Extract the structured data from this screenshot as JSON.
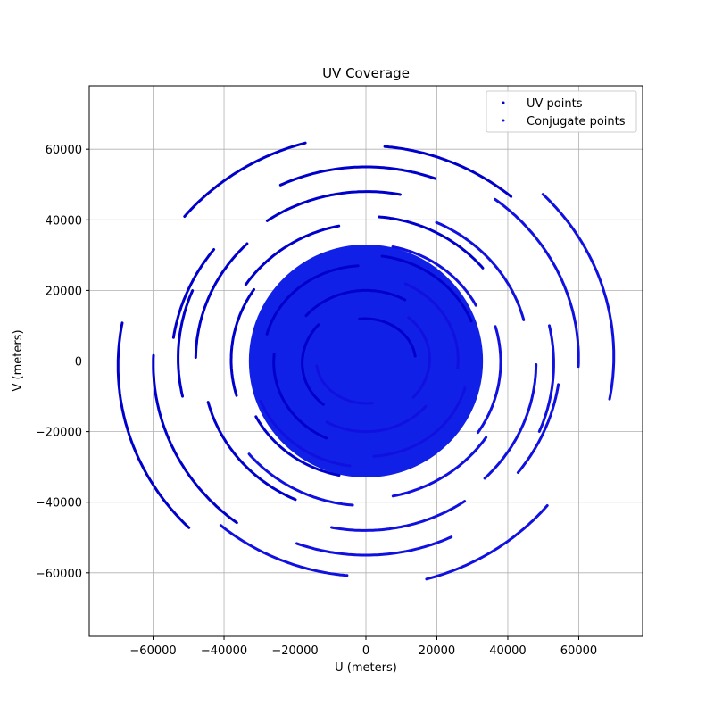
{
  "chart_data": {
    "type": "scatter",
    "title": "UV Coverage",
    "xlabel": "U (meters)",
    "ylabel": "V (meters)",
    "xlim": [
      -78000,
      78000
    ],
    "ylim": [
      -78000,
      78000
    ],
    "xticks": [
      -60000,
      -40000,
      -20000,
      0,
      20000,
      40000,
      60000
    ],
    "yticks": [
      -60000,
      -40000,
      -20000,
      0,
      20000,
      40000,
      60000
    ],
    "xtick_labels": [
      "−60000",
      "−40000",
      "−20000",
      "0",
      "20000",
      "40000",
      "60000"
    ],
    "ytick_labels": [
      "−60000",
      "−40000",
      "−20000",
      "0",
      "20000",
      "40000",
      "60000"
    ],
    "grid": true,
    "legend_position": "top-right",
    "series": [
      {
        "name": "UV points",
        "color": "#0000cc",
        "tracks": [
          {
            "ra": 70000,
            "rb": 66000,
            "rot": 10,
            "t0": 160,
            "t1": 215
          },
          {
            "ra": 67000,
            "rb": 64000,
            "rot": 5,
            "t0": 100,
            "t1": 135
          },
          {
            "ra": 64000,
            "rb": 61000,
            "rot": -5,
            "t0": 55,
            "t1": 90
          },
          {
            "ra": 60000,
            "rb": 57000,
            "rot": 8,
            "t0": 170,
            "t1": 225
          },
          {
            "ra": 57000,
            "rb": 55000,
            "rot": 0,
            "t0": 70,
            "t1": 115
          },
          {
            "ra": 55000,
            "rb": 52000,
            "rot": 12,
            "t0": 130,
            "t1": 160
          },
          {
            "ra": 53000,
            "rb": 50000,
            "rot": -8,
            "t0": 165,
            "t1": 200
          },
          {
            "ra": 50000,
            "rb": 48000,
            "rot": 4,
            "t0": 75,
            "t1": 120
          },
          {
            "ra": 48000,
            "rb": 46000,
            "rot": -6,
            "t0": 140,
            "t1": 185
          },
          {
            "ra": 46000,
            "rb": 43000,
            "rot": 10,
            "t0": 185,
            "t1": 235
          },
          {
            "ra": 43000,
            "rb": 41000,
            "rot": 0,
            "t0": 40,
            "t1": 85
          },
          {
            "ra": 41000,
            "rb": 39000,
            "rot": 6,
            "t0": 95,
            "t1": 140
          },
          {
            "ra": 38000,
            "rb": 36000,
            "rot": -4,
            "t0": 150,
            "t1": 200
          },
          {
            "ra": 35000,
            "rb": 33000,
            "rot": 8,
            "t0": 200,
            "t1": 250
          },
          {
            "ra": 32000,
            "rb": 30000,
            "rot": 2,
            "t0": 20,
            "t1": 80
          },
          {
            "ra": 29000,
            "rb": 27000,
            "rot": -6,
            "t0": 100,
            "t1": 170
          },
          {
            "ra": 26000,
            "rb": 24000,
            "rot": 5,
            "t0": 170,
            "t1": 240
          },
          {
            "ra": 22000,
            "rb": 20000,
            "rot": 0,
            "t0": 60,
            "t1": 140
          },
          {
            "ra": 18000,
            "rb": 16000,
            "rot": 9,
            "t0": 130,
            "t1": 220
          },
          {
            "ra": 14000,
            "rb": 12000,
            "rot": -3,
            "t0": 10,
            "t1": 100
          }
        ]
      },
      {
        "name": "Conjugate points",
        "color": "#1010e0",
        "tracks": [
          {
            "ra": 70000,
            "rb": 66000,
            "rot": 10,
            "t0": 340,
            "t1": 395
          },
          {
            "ra": 67000,
            "rb": 64000,
            "rot": 5,
            "t0": 280,
            "t1": 315
          },
          {
            "ra": 64000,
            "rb": 61000,
            "rot": -5,
            "t0": 235,
            "t1": 270
          },
          {
            "ra": 60000,
            "rb": 57000,
            "rot": 8,
            "t0": 350,
            "t1": 405
          },
          {
            "ra": 57000,
            "rb": 55000,
            "rot": 0,
            "t0": 250,
            "t1": 295
          },
          {
            "ra": 55000,
            "rb": 52000,
            "rot": 12,
            "t0": 310,
            "t1": 340
          },
          {
            "ra": 53000,
            "rb": 50000,
            "rot": -8,
            "t0": 345,
            "t1": 380
          },
          {
            "ra": 50000,
            "rb": 48000,
            "rot": 4,
            "t0": 255,
            "t1": 300
          },
          {
            "ra": 48000,
            "rb": 46000,
            "rot": -6,
            "t0": 320,
            "t1": 365
          },
          {
            "ra": 46000,
            "rb": 43000,
            "rot": 10,
            "t0": 5,
            "t1": 55
          },
          {
            "ra": 43000,
            "rb": 41000,
            "rot": 0,
            "t0": 220,
            "t1": 265
          },
          {
            "ra": 41000,
            "rb": 39000,
            "rot": 6,
            "t0": 275,
            "t1": 320
          },
          {
            "ra": 38000,
            "rb": 36000,
            "rot": -4,
            "t0": 330,
            "t1": 380
          },
          {
            "ra": 35000,
            "rb": 33000,
            "rot": 8,
            "t0": 20,
            "t1": 70
          },
          {
            "ra": 32000,
            "rb": 30000,
            "rot": 2,
            "t0": 200,
            "t1": 260
          },
          {
            "ra": 29000,
            "rb": 27000,
            "rot": -6,
            "t0": 280,
            "t1": 350
          },
          {
            "ra": 26000,
            "rb": 24000,
            "rot": 5,
            "t0": 350,
            "t1": 420
          },
          {
            "ra": 22000,
            "rb": 20000,
            "rot": 0,
            "t0": 240,
            "t1": 320
          },
          {
            "ra": 18000,
            "rb": 16000,
            "rot": 9,
            "t0": 310,
            "t1": 400
          },
          {
            "ra": 14000,
            "rb": 12000,
            "rot": -3,
            "t0": 190,
            "t1": 280
          }
        ]
      }
    ]
  }
}
